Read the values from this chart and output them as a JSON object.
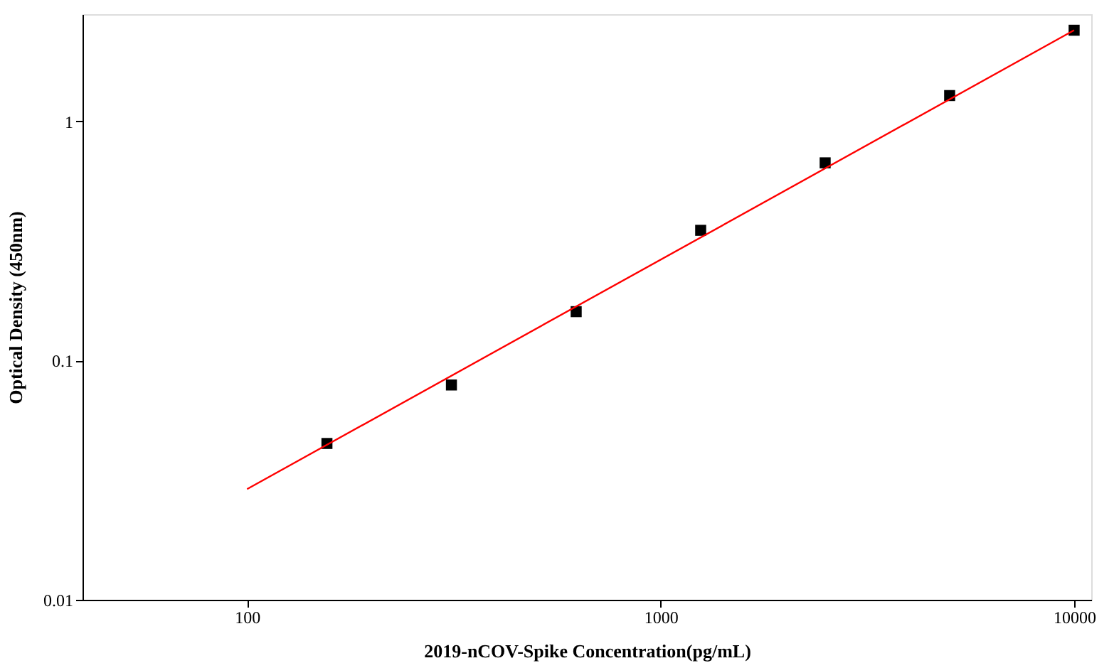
{
  "chart_data": {
    "type": "scatter",
    "xlabel": "2019-nCOV-Spike  Concentration(pg/mL)",
    "ylabel": "Optical Density (450nm)",
    "log": "xy",
    "xlim": [
      40,
      11000
    ],
    "ylim": [
      0.01,
      2.8
    ],
    "xticks": [
      100,
      1000,
      10000
    ],
    "yticks": [
      0.01,
      0.1,
      1
    ],
    "grid": false,
    "series": [
      {
        "color": "#000000",
        "marker": "square",
        "x": [
          156,
          312,
          625,
          1250,
          2500,
          5000,
          10000
        ],
        "values": [
          0.045,
          0.079,
          0.16,
          0.35,
          0.67,
          1.28,
          2.4
        ]
      },
      {
        "type": "line",
        "color": "#ff0000",
        "marker": "none",
        "line_style": "solid",
        "x": [
          100,
          10000
        ],
        "values": [
          0.029,
          2.4
        ]
      }
    ]
  }
}
